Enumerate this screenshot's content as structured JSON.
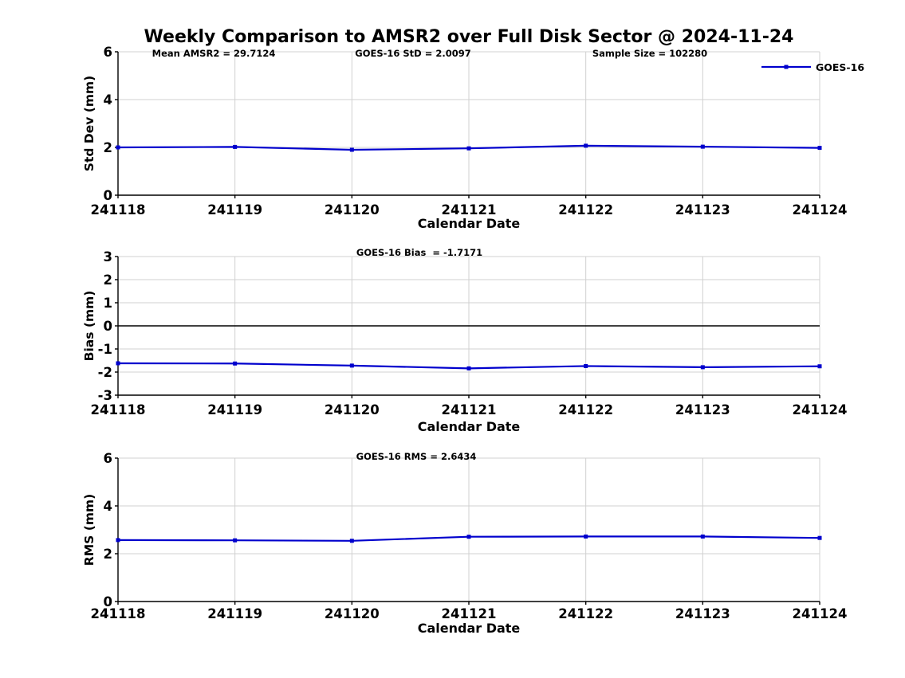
{
  "title": "Weekly Comparison to AMSR2 over Full Disk Sector @ 2024-11-24",
  "legend": {
    "label": "GOES-16",
    "position": "top-right"
  },
  "colors": {
    "line": "#0000cd",
    "grid": "#d0d0d0",
    "axis": "#000000",
    "text": "#000000",
    "background": "#ffffff"
  },
  "chart_data": [
    {
      "id": "std_dev",
      "type": "line",
      "annotations": [
        "Mean AMSR2 = 29.7124",
        "GOES-16 StD = 2.0097",
        "Sample Size = 102280"
      ],
      "xlabel": "Calendar Date",
      "ylabel": "Std Dev (mm)",
      "categories": [
        "241118",
        "241119",
        "241120",
        "241121",
        "241122",
        "241123",
        "241124"
      ],
      "ylim": [
        0,
        6
      ],
      "yticks": [
        0,
        2,
        4,
        6
      ],
      "grid": true,
      "legend_entries": [
        "GOES-16"
      ],
      "series": [
        {
          "name": "GOES-16",
          "values": [
            2.0,
            2.02,
            1.9,
            1.96,
            2.07,
            2.03,
            1.98
          ]
        }
      ]
    },
    {
      "id": "bias",
      "type": "line",
      "annotations": [
        "GOES-16 Bias  = -1.7171"
      ],
      "xlabel": "Calendar Date",
      "ylabel": "Bias (mm)",
      "categories": [
        "241118",
        "241119",
        "241120",
        "241121",
        "241122",
        "241123",
        "241124"
      ],
      "ylim": [
        -3,
        3
      ],
      "yticks": [
        -3,
        -2,
        -1,
        0,
        1,
        2,
        3
      ],
      "zero_line": true,
      "grid": true,
      "series": [
        {
          "name": "GOES-16",
          "values": [
            -1.62,
            -1.63,
            -1.72,
            -1.84,
            -1.74,
            -1.79,
            -1.75
          ]
        }
      ]
    },
    {
      "id": "rms",
      "type": "line",
      "annotations": [
        "GOES-16 RMS = 2.6434"
      ],
      "xlabel": "Calendar Date",
      "ylabel": "RMS (mm)",
      "categories": [
        "241118",
        "241119",
        "241120",
        "241121",
        "241122",
        "241123",
        "241124"
      ],
      "ylim": [
        0,
        6
      ],
      "yticks": [
        0,
        2,
        4,
        6
      ],
      "grid": true,
      "series": [
        {
          "name": "GOES-16",
          "values": [
            2.57,
            2.56,
            2.54,
            2.71,
            2.72,
            2.72,
            2.66
          ]
        }
      ]
    }
  ]
}
